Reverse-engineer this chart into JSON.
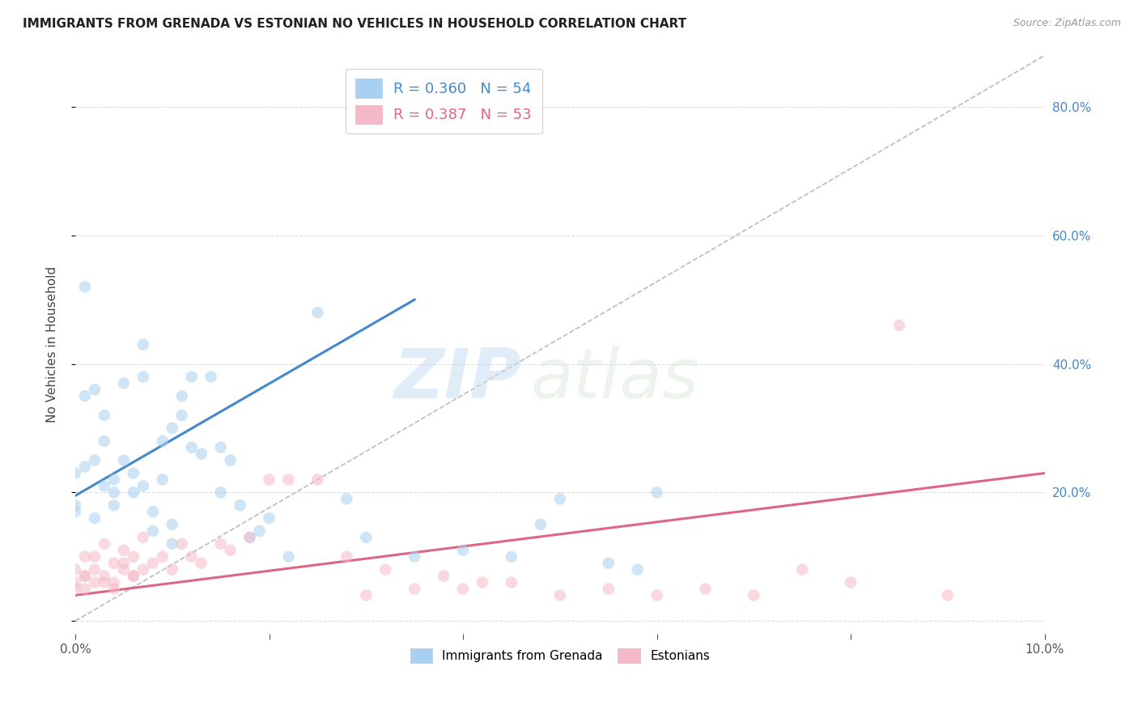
{
  "title": "IMMIGRANTS FROM GRENADA VS ESTONIAN NO VEHICLES IN HOUSEHOLD CORRELATION CHART",
  "source": "Source: ZipAtlas.com",
  "ylabel": "No Vehicles in Household",
  "right_ytick_vals": [
    0.2,
    0.4,
    0.6,
    0.8
  ],
  "right_ytick_labels": [
    "20.0%",
    "40.0%",
    "60.0%",
    "80.0%"
  ],
  "xlim": [
    0.0,
    0.1
  ],
  "ylim": [
    -0.02,
    0.88
  ],
  "legend1_label": "R = 0.360   N = 54",
  "legend2_label": "R = 0.387   N = 53",
  "watermark_zip": "ZIP",
  "watermark_atlas": "atlas",
  "blue_scatter_x": [
    0.001,
    0.001,
    0.002,
    0.002,
    0.003,
    0.003,
    0.004,
    0.004,
    0.005,
    0.005,
    0.006,
    0.006,
    0.007,
    0.007,
    0.007,
    0.008,
    0.008,
    0.009,
    0.009,
    0.01,
    0.01,
    0.01,
    0.011,
    0.011,
    0.012,
    0.012,
    0.013,
    0.014,
    0.015,
    0.015,
    0.016,
    0.017,
    0.018,
    0.019,
    0.02,
    0.022,
    0.025,
    0.028,
    0.03,
    0.035,
    0.04,
    0.045,
    0.048,
    0.05,
    0.055,
    0.058,
    0.06,
    0.0,
    0.0,
    0.0,
    0.001,
    0.002,
    0.003,
    0.004
  ],
  "blue_scatter_y": [
    0.52,
    0.35,
    0.36,
    0.25,
    0.32,
    0.28,
    0.22,
    0.18,
    0.25,
    0.37,
    0.2,
    0.23,
    0.38,
    0.43,
    0.21,
    0.17,
    0.14,
    0.28,
    0.22,
    0.3,
    0.15,
    0.12,
    0.35,
    0.32,
    0.38,
    0.27,
    0.26,
    0.38,
    0.2,
    0.27,
    0.25,
    0.18,
    0.13,
    0.14,
    0.16,
    0.1,
    0.48,
    0.19,
    0.13,
    0.1,
    0.11,
    0.1,
    0.15,
    0.19,
    0.09,
    0.08,
    0.2,
    0.23,
    0.18,
    0.17,
    0.24,
    0.16,
    0.21,
    0.2
  ],
  "pink_scatter_x": [
    0.0,
    0.0,
    0.001,
    0.001,
    0.002,
    0.002,
    0.003,
    0.003,
    0.004,
    0.004,
    0.005,
    0.005,
    0.006,
    0.006,
    0.007,
    0.007,
    0.008,
    0.009,
    0.01,
    0.011,
    0.012,
    0.013,
    0.015,
    0.016,
    0.018,
    0.02,
    0.022,
    0.025,
    0.028,
    0.03,
    0.032,
    0.035,
    0.038,
    0.04,
    0.042,
    0.045,
    0.05,
    0.055,
    0.06,
    0.065,
    0.07,
    0.075,
    0.08,
    0.085,
    0.09,
    0.0,
    0.001,
    0.001,
    0.002,
    0.003,
    0.004,
    0.005,
    0.006
  ],
  "pink_scatter_y": [
    0.08,
    0.06,
    0.1,
    0.07,
    0.1,
    0.06,
    0.07,
    0.12,
    0.09,
    0.06,
    0.08,
    0.11,
    0.07,
    0.1,
    0.08,
    0.13,
    0.09,
    0.1,
    0.08,
    0.12,
    0.1,
    0.09,
    0.12,
    0.11,
    0.13,
    0.22,
    0.22,
    0.22,
    0.1,
    0.04,
    0.08,
    0.05,
    0.07,
    0.05,
    0.06,
    0.06,
    0.04,
    0.05,
    0.04,
    0.05,
    0.04,
    0.08,
    0.06,
    0.46,
    0.04,
    0.05,
    0.07,
    0.05,
    0.08,
    0.06,
    0.05,
    0.09,
    0.07
  ],
  "blue_line_x": [
    0.0,
    0.035
  ],
  "blue_line_y": [
    0.195,
    0.5
  ],
  "pink_line_x": [
    0.0,
    0.1
  ],
  "pink_line_y": [
    0.04,
    0.23
  ],
  "diag_line_x": [
    0.0,
    0.1
  ],
  "diag_line_y": [
    0.0,
    0.88
  ],
  "blue_color": "#a8d0f0",
  "pink_color": "#f5b8c8",
  "blue_line_color": "#4488cc",
  "pink_line_color": "#dd6688",
  "diag_color": "#bbbbbb",
  "bg_color": "#ffffff",
  "grid_color": "#dddddd",
  "marker_size": 110,
  "marker_alpha": 0.55,
  "xtick_positions": [
    0.0,
    0.02,
    0.04,
    0.06,
    0.08,
    0.1
  ],
  "xtick_labels_show": [
    "0.0%",
    "",
    "",
    "",
    "",
    "10.0%"
  ]
}
